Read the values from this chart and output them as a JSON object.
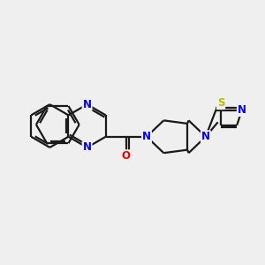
{
  "background_color": "#efefef",
  "bond_color": "#1a1a1a",
  "atom_colors": {
    "N": "#0000ee",
    "O": "#ee0000",
    "S": "#bbbb00",
    "C": "#1a1a1a"
  },
  "lw": 1.6,
  "fs": 8.5,
  "xlim": [
    0,
    10
  ],
  "ylim": [
    1,
    9
  ]
}
